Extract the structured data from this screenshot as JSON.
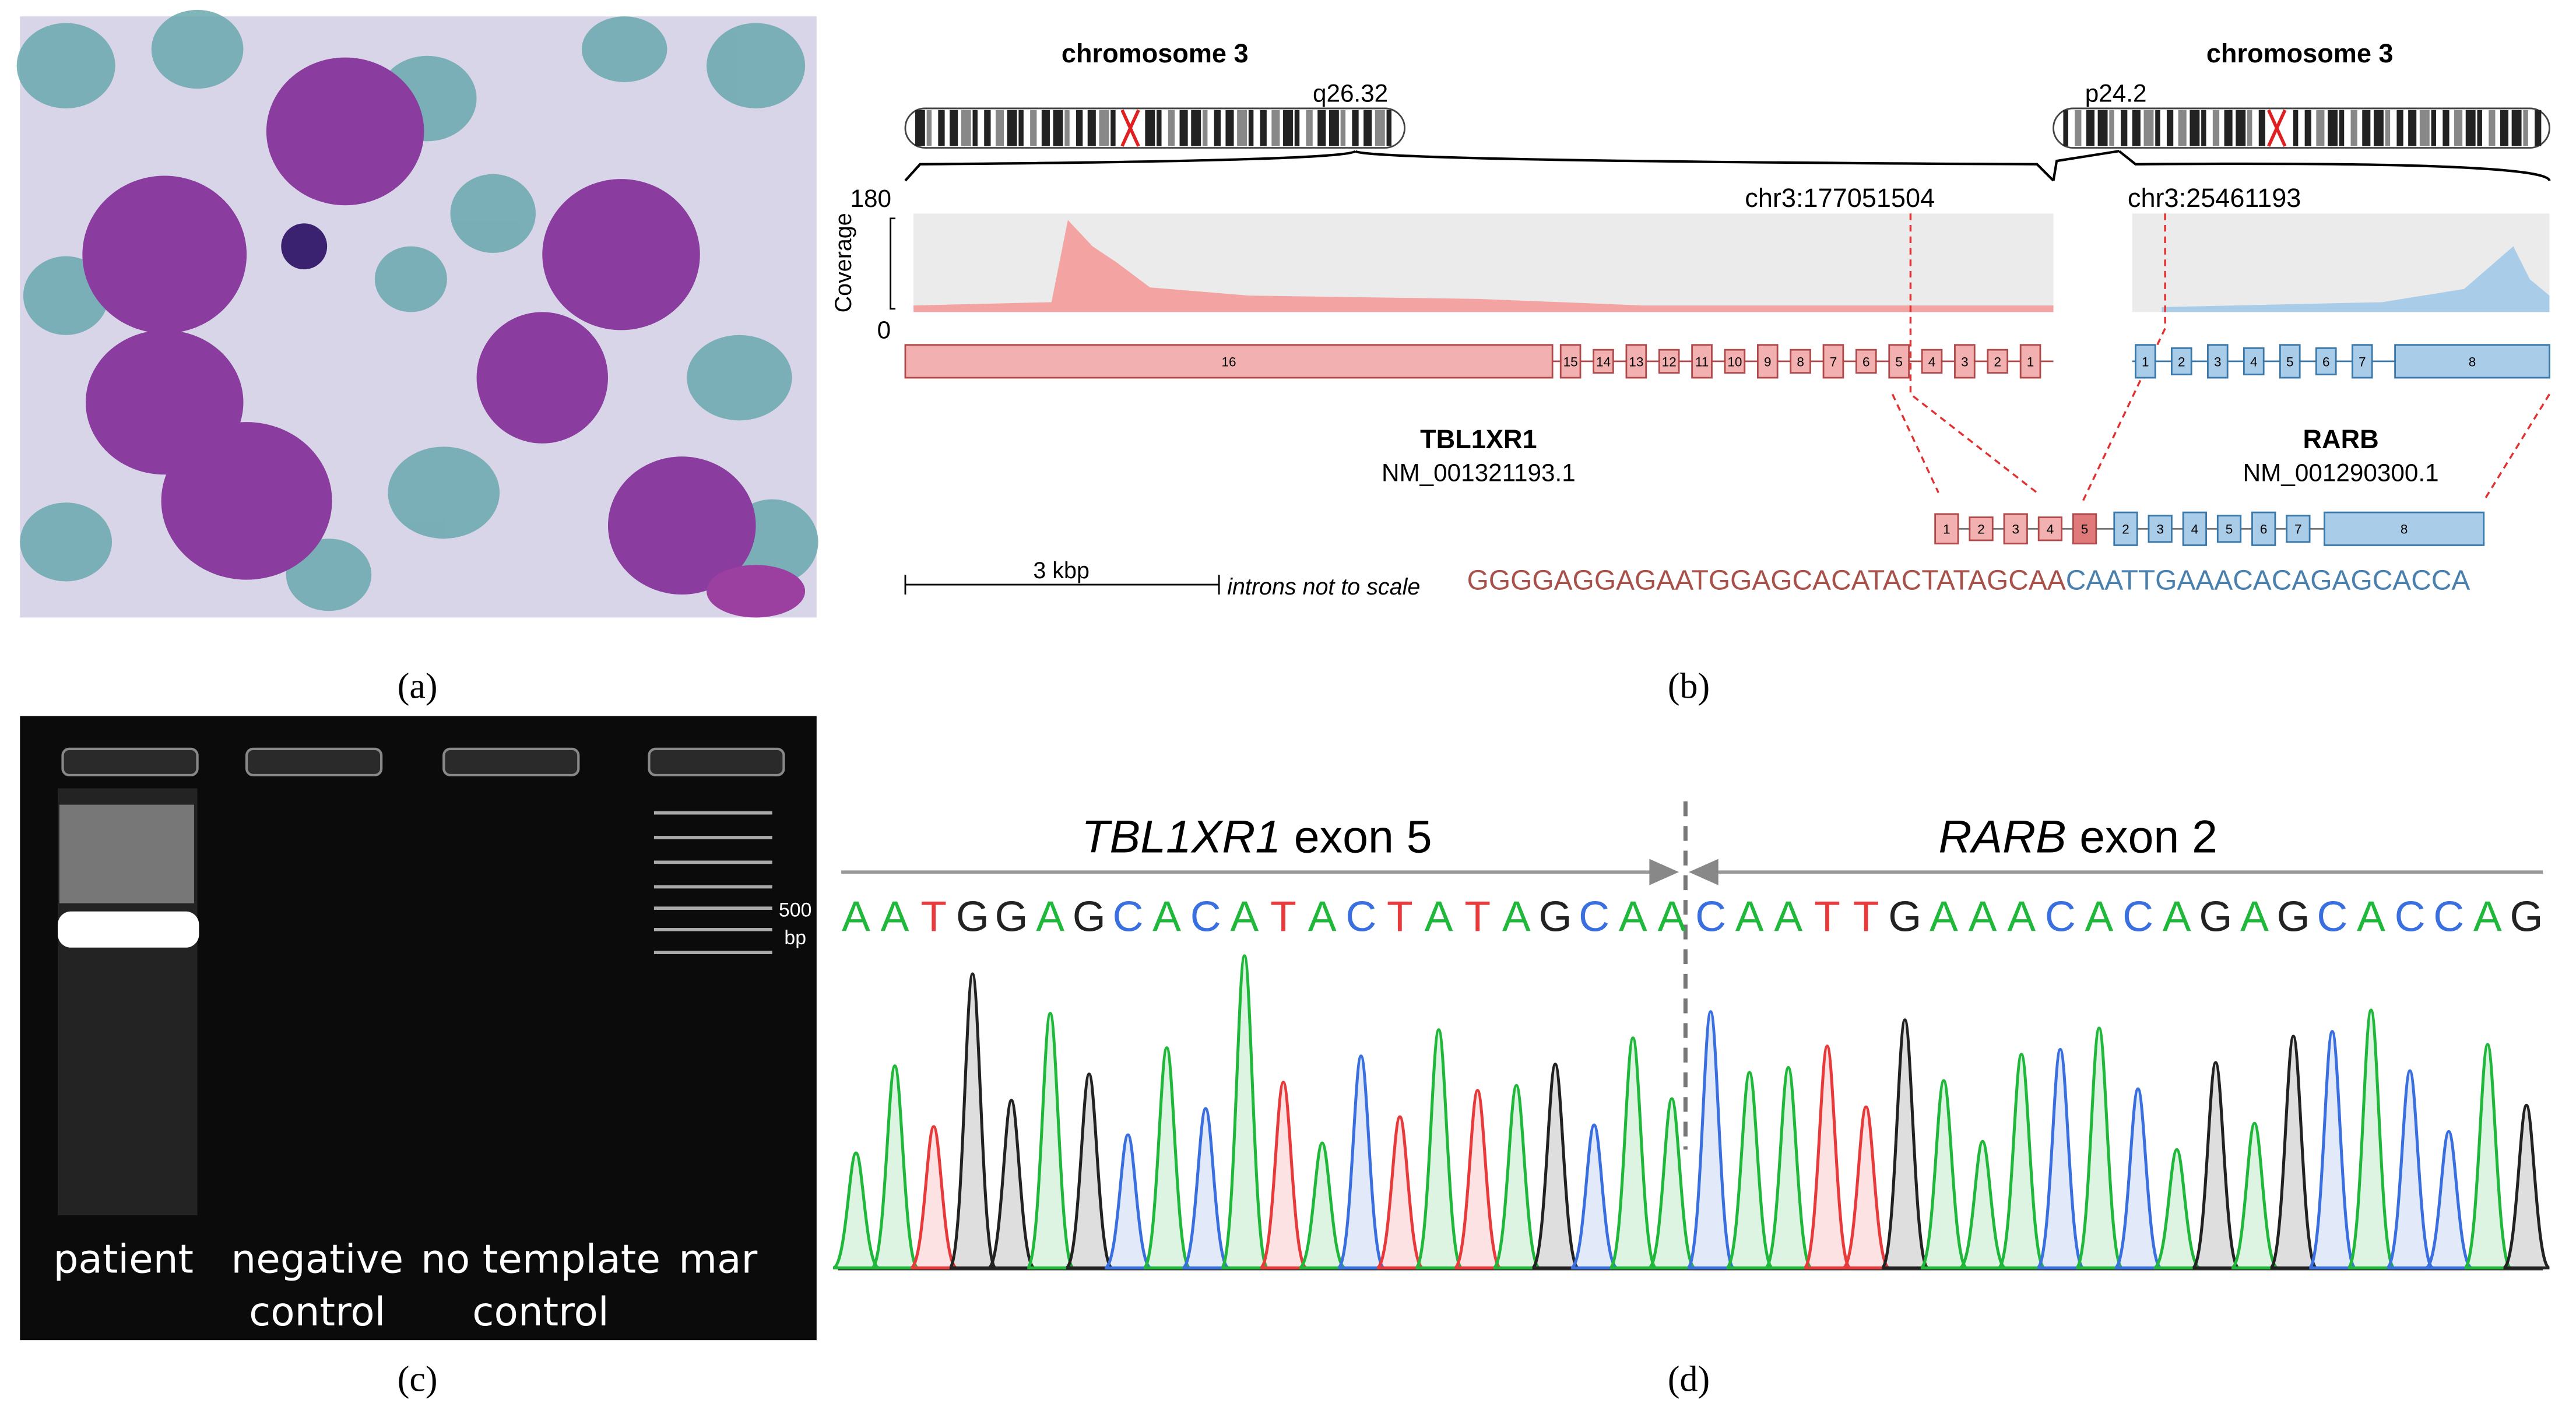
{
  "panel_a": {
    "label": "(a)"
  },
  "panel_b": {
    "label": "(b)",
    "left_chromosome": {
      "name": "chromosome 3",
      "band": "q26.32"
    },
    "right_chromosome": {
      "name": "chromosome 3",
      "band": "p24.2"
    },
    "coverage": {
      "axis_label": "Coverage",
      "max": "180",
      "min": "0"
    },
    "breakpoints": [
      "chr3:177051504",
      "chr3:25461193"
    ],
    "genes": [
      {
        "name": "TBL1XR1",
        "transcript": "NM_001321193.1",
        "exons": [
          "16",
          "15",
          "14",
          "13",
          "12",
          "11",
          "10",
          "9",
          "8",
          "7",
          "6",
          "5",
          "4",
          "3",
          "2",
          "1"
        ]
      },
      {
        "name": "RARB",
        "transcript": "NM_001290300.1",
        "exons": [
          "1",
          "2",
          "3",
          "4",
          "5",
          "6",
          "7",
          "8"
        ]
      }
    ],
    "fusion_exons": {
      "first": [
        "1",
        "2",
        "3",
        "4",
        "5"
      ],
      "second": [
        "2",
        "3",
        "4",
        "5",
        "6",
        "7",
        "8"
      ]
    },
    "scale_bar": "3 kbp",
    "scale_note": "introns not to scale",
    "junction_sequence": {
      "first": "GGGGAGGAGAATGGAGCACATACTATAGCAA",
      "second": "CAATTGAAACACAGAGCACCA"
    }
  },
  "panel_c": {
    "label": "(c)",
    "lanes": [
      [
        "patient"
      ],
      [
        "negative",
        "control"
      ],
      [
        "no template",
        "control"
      ],
      [
        "mar"
      ]
    ],
    "marker": [
      "500",
      "bp"
    ]
  },
  "panel_d": {
    "label": "(d)",
    "left_exon": {
      "gene": "TBL1XR1",
      "text": "exon 5"
    },
    "right_exon": {
      "gene": "RARB",
      "text": "exon 2"
    },
    "bases": [
      "A",
      "A",
      "T",
      "G",
      "G",
      "A",
      "G",
      "C",
      "A",
      "C",
      "A",
      "T",
      "A",
      "C",
      "T",
      "A",
      "T",
      "A",
      "G",
      "C",
      "A",
      "A",
      "C",
      "A",
      "A",
      "T",
      "T",
      "G",
      "A",
      "A",
      "A",
      "C",
      "A",
      "C",
      "A",
      "G",
      "A",
      "G",
      "C",
      "A",
      "C",
      "C",
      "A",
      "G"
    ],
    "base_colors": {
      "A": "#1fb83a",
      "C": "#3a6fe0",
      "G": "#222222",
      "T": "#e83a3a"
    }
  }
}
